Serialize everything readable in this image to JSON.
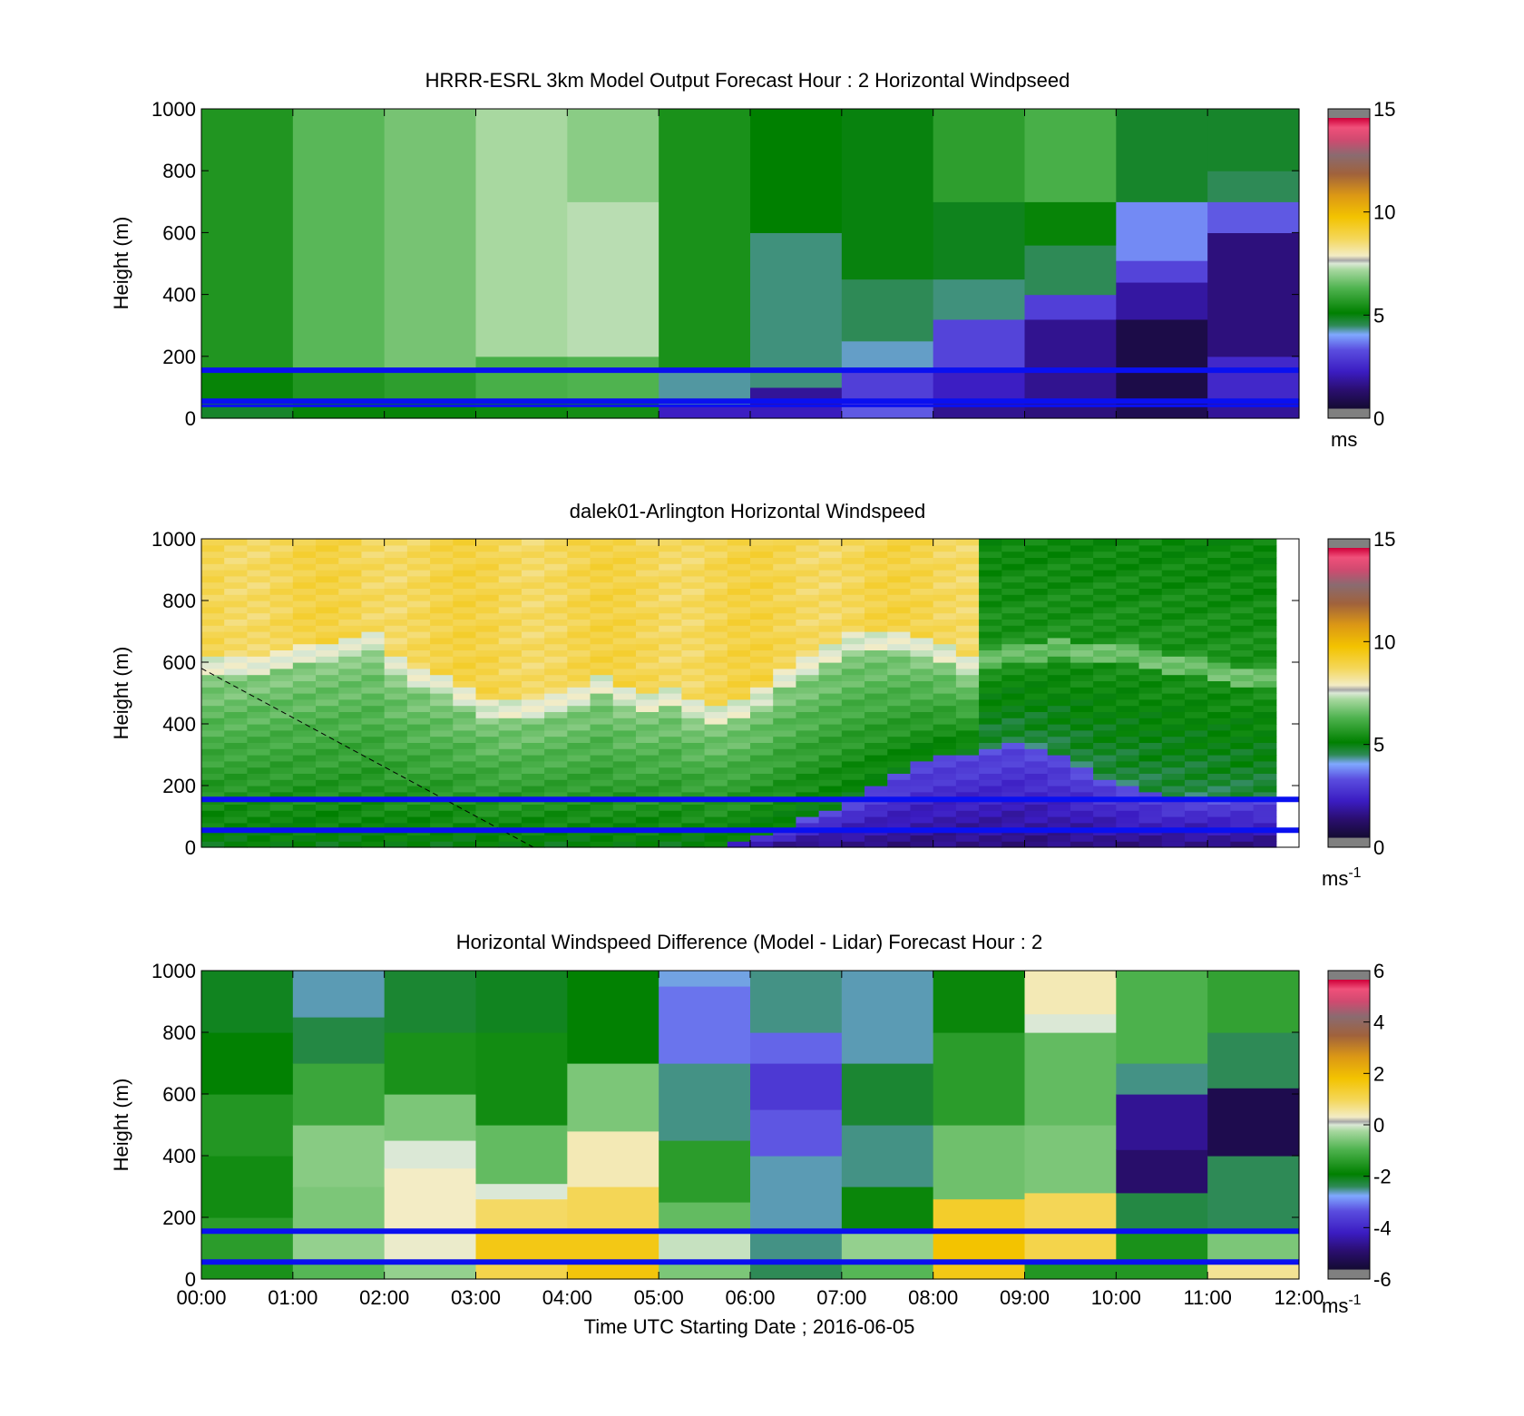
{
  "figure": {
    "x_tick_labels": [
      "00:00",
      "01:00",
      "02:00",
      "03:00",
      "04:00",
      "05:00",
      "06:00",
      "07:00",
      "08:00",
      "09:00",
      "10:00",
      "11:00",
      "12:00"
    ],
    "xlabel": "Time UTC  Starting Date ; 2016-06-05"
  },
  "chart_data": [
    {
      "type": "heatmap",
      "title": "HRRR-ESRL 3km Model Output   Forecast Hour : 2 Horizontal Windpseed",
      "ylabel": "Height (m)",
      "ylim": [
        0,
        1000
      ],
      "y_ticks": [
        0,
        200,
        400,
        600,
        800,
        1000
      ],
      "xlim": [
        0,
        12
      ],
      "colorbar": {
        "range": [
          0,
          15
        ],
        "ticks": [
          0,
          5,
          10,
          15
        ],
        "unit": "ms",
        "unit_sup": ""
      },
      "reference_heights": [
        155,
        55,
        40
      ],
      "columns": [
        {
          "x0": 0,
          "x1": 1,
          "bands": [
            [
              0,
              55,
              4.8
            ],
            [
              55,
              150,
              5.2
            ],
            [
              150,
              1000,
              5.6
            ]
          ]
        },
        {
          "x0": 1,
          "x1": 2,
          "bands": [
            [
              0,
              55,
              5.2
            ],
            [
              55,
              150,
              5.6
            ],
            [
              150,
              1000,
              6.4
            ]
          ]
        },
        {
          "x0": 2,
          "x1": 3,
          "bands": [
            [
              0,
              55,
              5.2
            ],
            [
              55,
              150,
              5.8
            ],
            [
              150,
              1000,
              6.7
            ]
          ]
        },
        {
          "x0": 3,
          "x1": 4,
          "bands": [
            [
              0,
              55,
              5.3
            ],
            [
              55,
              200,
              6.2
            ],
            [
              200,
              1000,
              7.2
            ]
          ]
        },
        {
          "x0": 4,
          "x1": 5,
          "bands": [
            [
              0,
              55,
              5.4
            ],
            [
              55,
              200,
              6.3
            ],
            [
              200,
              700,
              7.3
            ],
            [
              700,
              1000,
              6.9
            ]
          ]
        },
        {
          "x0": 5,
          "x1": 6,
          "bands": [
            [
              0,
              40,
              2.3
            ],
            [
              40,
              150,
              4.3
            ],
            [
              150,
              1000,
              5.5
            ]
          ]
        },
        {
          "x0": 6,
          "x1": 7,
          "bands": [
            [
              0,
              40,
              2.2
            ],
            [
              40,
              100,
              1.8
            ],
            [
              100,
              600,
              4.4
            ],
            [
              600,
              1000,
              5.1
            ]
          ]
        },
        {
          "x0": 7,
          "x1": 8,
          "bands": [
            [
              0,
              40,
              3.4
            ],
            [
              40,
              160,
              3.0
            ],
            [
              160,
              250,
              4.2
            ],
            [
              250,
              450,
              4.5
            ],
            [
              450,
              1000,
              5.0
            ]
          ]
        },
        {
          "x0": 8,
          "x1": 9,
          "bands": [
            [
              0,
              60,
              1.7
            ],
            [
              60,
              160,
              2.3
            ],
            [
              160,
              320,
              3.1
            ],
            [
              320,
              450,
              4.4
            ],
            [
              450,
              700,
              4.9
            ],
            [
              700,
              1000,
              5.8
            ]
          ]
        },
        {
          "x0": 9,
          "x1": 10,
          "bands": [
            [
              0,
              60,
              1.5
            ],
            [
              60,
              320,
              1.7
            ],
            [
              320,
              400,
              3.0
            ],
            [
              400,
              560,
              4.5
            ],
            [
              560,
              700,
              5.2
            ],
            [
              700,
              1000,
              6.2
            ]
          ]
        },
        {
          "x0": 10,
          "x1": 11,
          "bands": [
            [
              0,
              60,
              0.7
            ],
            [
              60,
              320,
              0.5
            ],
            [
              320,
              440,
              1.9
            ],
            [
              440,
              510,
              3.1
            ],
            [
              510,
              700,
              3.8
            ],
            [
              700,
              1000,
              4.8
            ]
          ]
        },
        {
          "x0": 11,
          "x1": 12,
          "bands": [
            [
              0,
              60,
              1.8
            ],
            [
              60,
              200,
              2.5
            ],
            [
              200,
              600,
              1.5
            ],
            [
              600,
              700,
              3.4
            ],
            [
              700,
              800,
              4.5
            ],
            [
              800,
              1000,
              4.8
            ]
          ]
        }
      ]
    },
    {
      "type": "heatmap",
      "title": "dalek01-Arlington  Horizontal Windspeed",
      "ylabel": "Height (m)",
      "ylim": [
        0,
        1000
      ],
      "y_ticks": [
        0,
        200,
        400,
        600,
        800,
        1000
      ],
      "xlim": [
        0,
        12
      ],
      "colorbar": {
        "range": [
          0,
          15
        ],
        "ticks": [
          0,
          5,
          10,
          15
        ],
        "unit": "ms",
        "unit_sup": "-1"
      },
      "reference_heights": [
        155,
        55
      ],
      "profile_times": [
        0.25,
        0.5,
        0.75,
        1.0,
        1.25,
        1.5,
        1.75,
        2.0,
        2.25,
        2.5,
        2.75,
        3.0,
        3.25,
        3.5,
        3.75,
        4.0,
        4.25,
        4.5,
        4.75,
        5.0,
        5.25,
        5.5,
        5.75,
        6.0,
        6.25,
        6.5,
        6.75,
        7.0,
        7.25,
        7.5,
        7.75,
        8.0,
        8.25,
        8.5,
        8.75,
        9.0,
        9.25,
        9.5,
        9.75,
        10.0,
        10.25,
        10.5,
        10.75,
        11.0,
        11.25,
        11.5,
        11.75
      ],
      "boundary_layer_top": [
        560,
        560,
        570,
        580,
        600,
        610,
        620,
        640,
        560,
        530,
        500,
        470,
        430,
        420,
        430,
        440,
        460,
        500,
        460,
        440,
        460,
        420,
        400,
        420,
        460,
        520,
        560,
        600,
        640,
        650,
        640,
        620,
        600,
        560,
        580,
        600,
        600,
        620,
        600,
        600,
        600,
        580,
        560,
        560,
        540,
        530,
        520
      ],
      "low_jet_top": [
        0,
        0,
        0,
        0,
        0,
        0,
        0,
        0,
        0,
        0,
        0,
        0,
        0,
        0,
        0,
        0,
        0,
        0,
        0,
        0,
        0,
        0,
        0,
        20,
        40,
        60,
        100,
        130,
        160,
        200,
        240,
        280,
        300,
        310,
        320,
        340,
        330,
        300,
        260,
        220,
        200,
        180,
        170,
        170,
        160,
        160,
        160
      ],
      "gradient_line": [
        [
          0,
          580
        ],
        [
          3.63,
          0
        ]
      ]
    },
    {
      "type": "heatmap",
      "title": "Horizontal Windspeed Difference (Model - Lidar) Forecast Hour : 2",
      "ylabel": "Height (m)",
      "ylim": [
        0,
        1000
      ],
      "y_ticks": [
        0,
        200,
        400,
        600,
        800,
        1000
      ],
      "xlim": [
        0,
        12
      ],
      "colorbar": {
        "range": [
          -6,
          6
        ],
        "ticks": [
          -6,
          -4,
          -2,
          0,
          2,
          4,
          6
        ],
        "unit": "ms",
        "unit_sup": "-1"
      },
      "reference_heights": [
        155,
        55
      ],
      "columns": [
        {
          "x0": 0,
          "x1": 1,
          "bands": [
            [
              0,
              60,
              -1.6
            ],
            [
              60,
              200,
              -1.4
            ],
            [
              200,
              400,
              -1.7
            ],
            [
              400,
              600,
              -1.5
            ],
            [
              600,
              800,
              -1.9
            ],
            [
              800,
              1000,
              -2.1
            ]
          ]
        },
        {
          "x0": 1,
          "x1": 2,
          "bands": [
            [
              0,
              60,
              -0.9
            ],
            [
              60,
              150,
              -0.4
            ],
            [
              150,
              300,
              -0.6
            ],
            [
              300,
              500,
              -0.5
            ],
            [
              500,
              700,
              -1.2
            ],
            [
              700,
              850,
              -2.3
            ],
            [
              850,
              1000,
              -2.6
            ]
          ]
        },
        {
          "x0": 2,
          "x1": 3,
          "bands": [
            [
              0,
              60,
              -0.4
            ],
            [
              60,
              150,
              0.2
            ],
            [
              150,
              360,
              0.3
            ],
            [
              360,
              450,
              0.0
            ],
            [
              450,
              600,
              -0.6
            ],
            [
              600,
              800,
              -1.6
            ],
            [
              800,
              1000,
              -2.2
            ]
          ]
        },
        {
          "x0": 3,
          "x1": 4,
          "bands": [
            [
              0,
              60,
              1.1
            ],
            [
              60,
              150,
              1.6
            ],
            [
              150,
              260,
              0.9
            ],
            [
              260,
              310,
              0.0
            ],
            [
              310,
              500,
              -0.8
            ],
            [
              500,
              800,
              -1.7
            ],
            [
              800,
              1000,
              -2.1
            ]
          ]
        },
        {
          "x0": 4,
          "x1": 5,
          "bands": [
            [
              0,
              60,
              1.7
            ],
            [
              60,
              150,
              1.6
            ],
            [
              150,
              300,
              1.0
            ],
            [
              300,
              480,
              0.4
            ],
            [
              480,
              700,
              -0.6
            ],
            [
              700,
              1000,
              -1.9
            ]
          ]
        },
        {
          "x0": 5,
          "x1": 6,
          "bands": [
            [
              0,
              60,
              -0.6
            ],
            [
              60,
              150,
              -0.1
            ],
            [
              150,
              250,
              -0.8
            ],
            [
              250,
              450,
              -1.4
            ],
            [
              450,
              700,
              -2.5
            ],
            [
              700,
              950,
              -3.1
            ],
            [
              950,
              1000,
              -2.7
            ]
          ]
        },
        {
          "x0": 6,
          "x1": 7,
          "bands": [
            [
              0,
              60,
              -2.4
            ],
            [
              60,
              150,
              -2.5
            ],
            [
              150,
              400,
              -2.6
            ],
            [
              400,
              550,
              -3.3
            ],
            [
              550,
              700,
              -3.7
            ],
            [
              700,
              800,
              -3.2
            ],
            [
              800,
              1000,
              -2.5
            ]
          ]
        },
        {
          "x0": 7,
          "x1": 8,
          "bands": [
            [
              0,
              60,
              -0.9
            ],
            [
              60,
              150,
              -0.4
            ],
            [
              150,
              300,
              -1.8
            ],
            [
              300,
              500,
              -2.5
            ],
            [
              500,
              700,
              -2.2
            ],
            [
              700,
              1000,
              -2.6
            ]
          ]
        },
        {
          "x0": 8,
          "x1": 9,
          "bands": [
            [
              0,
              60,
              1.6
            ],
            [
              60,
              150,
              1.8
            ],
            [
              150,
              260,
              1.4
            ],
            [
              260,
              500,
              -0.7
            ],
            [
              500,
              800,
              -1.4
            ],
            [
              800,
              1000,
              -1.8
            ]
          ]
        },
        {
          "x0": 9,
          "x1": 10,
          "bands": [
            [
              0,
              60,
              -1.5
            ],
            [
              60,
              150,
              1.1
            ],
            [
              150,
              280,
              1.0
            ],
            [
              280,
              500,
              -0.6
            ],
            [
              500,
              800,
              -0.8
            ],
            [
              800,
              860,
              0.0
            ],
            [
              860,
              1000,
              0.4
            ]
          ]
        },
        {
          "x0": 10,
          "x1": 11,
          "bands": [
            [
              0,
              60,
              -1.5
            ],
            [
              60,
              150,
              -1.6
            ],
            [
              150,
              280,
              -2.3
            ],
            [
              280,
              420,
              -5.0
            ],
            [
              420,
              600,
              -4.6
            ],
            [
              600,
              700,
              -2.5
            ],
            [
              700,
              1000,
              -1.0
            ]
          ]
        },
        {
          "x0": 11,
          "x1": 12,
          "bands": [
            [
              0,
              60,
              0.6
            ],
            [
              60,
              150,
              -0.6
            ],
            [
              150,
              400,
              -2.4
            ],
            [
              400,
              620,
              -5.5
            ],
            [
              620,
              800,
              -2.4
            ],
            [
              800,
              1000,
              -1.3
            ]
          ]
        }
      ]
    }
  ]
}
